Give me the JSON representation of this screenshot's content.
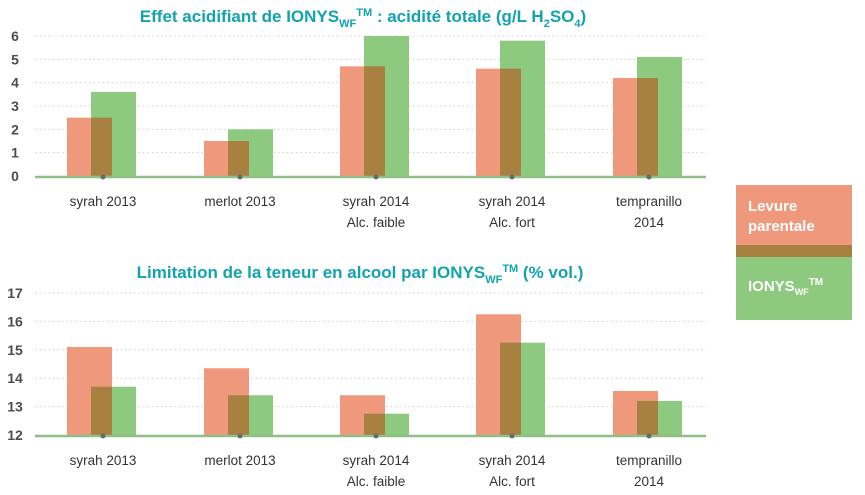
{
  "colors": {
    "parental": "#f0987c",
    "ionys": "#8dc97f",
    "overlap": "#a88040",
    "title": "#12a3b0",
    "grid": "#cccccc",
    "baseline": "#8fbf86"
  },
  "legend": {
    "parental_line1": "Levure",
    "parental_line2": "parentale",
    "ionys_main": "IONYS",
    "ionys_sub": "WF",
    "ionys_sup": "TM"
  },
  "chart_data": [
    {
      "type": "bar",
      "title": {
        "main": "Effet acidifiant de IONYS",
        "sub": "WF",
        "sup": "TM",
        "rest": " : acidité totale (g/L H",
        "sub2": "2",
        "rest2": "SO",
        "sub3": "4",
        "end": ")"
      },
      "categories": [
        [
          "syrah 2013"
        ],
        [
          "merlot 2013"
        ],
        [
          "syrah 2014",
          "Alc. faible"
        ],
        [
          "syrah 2014",
          "Alc. fort"
        ],
        [
          "tempranillo",
          "2014"
        ]
      ],
      "series": [
        {
          "name": "Levure parentale",
          "values": [
            2.5,
            1.5,
            4.7,
            4.6,
            4.2
          ]
        },
        {
          "name": "IONYS WF",
          "values": [
            3.6,
            2.0,
            6.0,
            5.8,
            5.1
          ]
        }
      ],
      "ylim": [
        0,
        6
      ],
      "yticks": [
        "0",
        "1",
        "2",
        "3",
        "4",
        "5",
        "6"
      ],
      "xlabel": "",
      "ylabel": ""
    },
    {
      "type": "bar",
      "title": {
        "main": "Limitation de la teneur en alcool par IONYS",
        "sub": "WF",
        "sup": "TM",
        "rest": " (% vol.)"
      },
      "categories": [
        [
          "syrah 2013"
        ],
        [
          "merlot 2013"
        ],
        [
          "syrah 2014",
          "Alc. faible"
        ],
        [
          "syrah 2014",
          "Alc. fort"
        ],
        [
          "tempranillo",
          "2014"
        ]
      ],
      "series": [
        {
          "name": "Levure parentale",
          "values": [
            15.1,
            14.35,
            13.4,
            16.25,
            13.55
          ]
        },
        {
          "name": "IONYS WF",
          "values": [
            13.7,
            13.4,
            12.75,
            15.25,
            13.2
          ]
        }
      ],
      "ylim": [
        12,
        17
      ],
      "yticks": [
        "12",
        "13",
        "14",
        "15",
        "16",
        "17"
      ],
      "xlabel": "",
      "ylabel": ""
    }
  ]
}
